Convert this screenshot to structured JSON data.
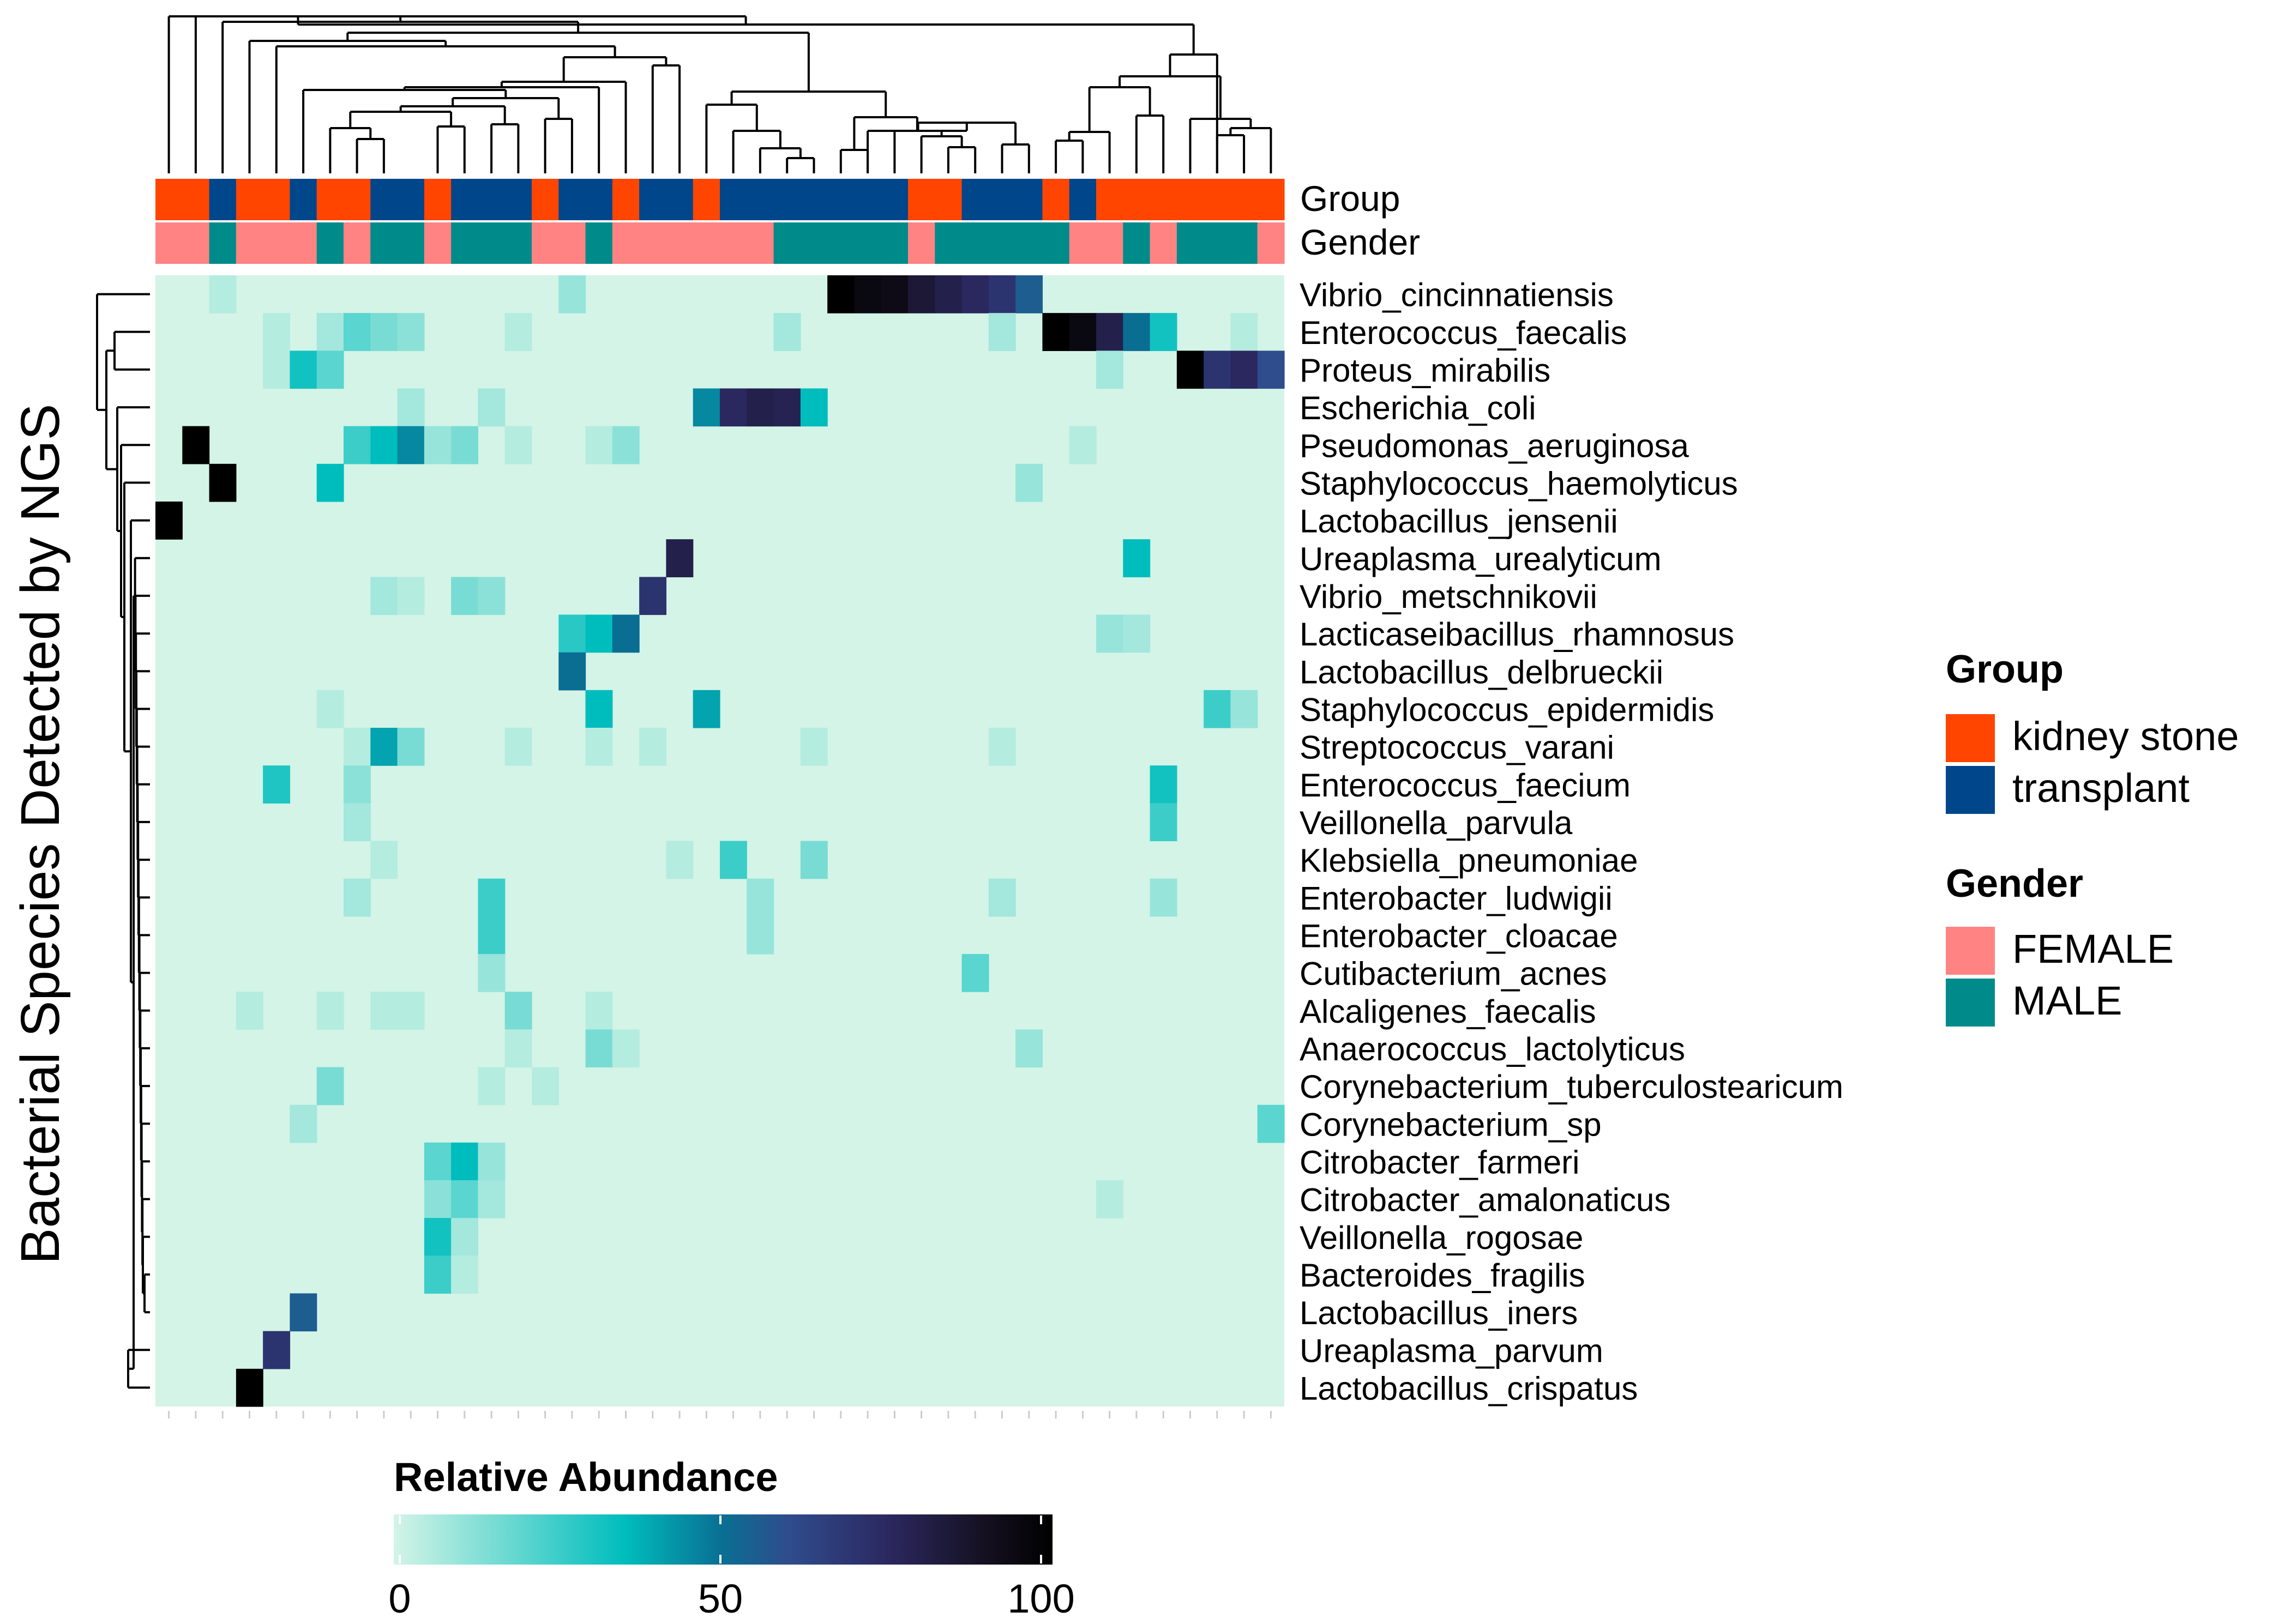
{
  "chart_data": {
    "type": "heatmap",
    "ylabel": "Bacterial Species Detected by NGS",
    "rows": [
      "Vibrio_cincinnatiensis",
      "Enterococcus_faecalis",
      "Proteus_mirabilis",
      "Escherichia_coli",
      "Pseudomonas_aeruginosa",
      "Staphylococcus_haemolyticus",
      "Lactobacillus_jensenii",
      "Ureaplasma_urealyticum",
      "Vibrio_metschnikovii",
      "Lacticaseibacillus_rhamnosus",
      "Lactobacillus_delbrueckii",
      "Staphylococcus_epidermidis",
      "Streptococcus_varani",
      "Enterococcus_faecium",
      "Veillonella_parvula",
      "Klebsiella_pneumoniae",
      "Enterobacter_ludwigii",
      "Enterobacter_cloacae",
      "Cutibacterium_acnes",
      "Alcaligenes_faecalis",
      "Anaerococcus_lactolyticus",
      "Corynebacterium_tuberculostearicum",
      "Corynebacterium_sp",
      "Citrobacter_farmeri",
      "Citrobacter_amalonaticus",
      "Veillonella_rogosae",
      "Bacteroides_fragilis",
      "Lactobacillus_iners",
      "Ureaplasma_parvum",
      "Lactobacillus_crispatus"
    ],
    "n_samples": 42,
    "values_note": "Relative abundance (0-100) per species row, listed as [sample index, value]; all unlisted cells are 0.",
    "nonzero_values": [
      [
        [
          2,
          5
        ],
        [
          15,
          10
        ],
        [
          25,
          100
        ],
        [
          26,
          95
        ],
        [
          27,
          93
        ],
        [
          28,
          85
        ],
        [
          29,
          80
        ],
        [
          30,
          75
        ],
        [
          31,
          70
        ],
        [
          32,
          55
        ]
      ],
      [
        [
          4,
          5
        ],
        [
          6,
          8
        ],
        [
          7,
          20
        ],
        [
          8,
          15
        ],
        [
          9,
          12
        ],
        [
          13,
          5
        ],
        [
          23,
          8
        ],
        [
          31,
          8
        ],
        [
          33,
          100
        ],
        [
          34,
          95
        ],
        [
          35,
          80
        ],
        [
          36,
          50
        ],
        [
          37,
          32
        ],
        [
          40,
          5
        ]
      ],
      [
        [
          4,
          5
        ],
        [
          5,
          32
        ],
        [
          6,
          20
        ],
        [
          35,
          8
        ],
        [
          38,
          100
        ],
        [
          39,
          70
        ],
        [
          40,
          75
        ],
        [
          41,
          60
        ]
      ],
      [
        [
          9,
          8
        ],
        [
          12,
          8
        ],
        [
          20,
          45
        ],
        [
          21,
          75
        ],
        [
          22,
          80
        ],
        [
          23,
          78
        ],
        [
          24,
          35
        ]
      ],
      [
        [
          1,
          100
        ],
        [
          7,
          25
        ],
        [
          8,
          35
        ],
        [
          9,
          45
        ],
        [
          10,
          10
        ],
        [
          11,
          15
        ],
        [
          13,
          5
        ],
        [
          16,
          5
        ],
        [
          17,
          12
        ],
        [
          34,
          5
        ]
      ],
      [
        [
          2,
          100
        ],
        [
          6,
          35
        ],
        [
          32,
          10
        ]
      ],
      [
        [
          0,
          100
        ]
      ],
      [
        [
          19,
          80
        ],
        [
          36,
          35
        ]
      ],
      [
        [
          8,
          8
        ],
        [
          9,
          5
        ],
        [
          11,
          15
        ],
        [
          12,
          12
        ],
        [
          18,
          70
        ]
      ],
      [
        [
          15,
          28
        ],
        [
          16,
          35
        ],
        [
          17,
          50
        ],
        [
          35,
          10
        ],
        [
          36,
          8
        ]
      ],
      [
        [
          15,
          50
        ]
      ],
      [
        [
          6,
          5
        ],
        [
          16,
          35
        ],
        [
          20,
          40
        ],
        [
          39,
          25
        ],
        [
          40,
          10
        ]
      ],
      [
        [
          7,
          5
        ],
        [
          8,
          40
        ],
        [
          9,
          15
        ],
        [
          13,
          5
        ],
        [
          16,
          5
        ],
        [
          18,
          5
        ],
        [
          24,
          5
        ],
        [
          31,
          5
        ]
      ],
      [
        [
          4,
          30
        ],
        [
          7,
          12
        ],
        [
          37,
          32
        ]
      ],
      [
        [
          7,
          8
        ],
        [
          37,
          25
        ]
      ],
      [
        [
          8,
          5
        ],
        [
          19,
          5
        ],
        [
          21,
          25
        ],
        [
          24,
          15
        ]
      ],
      [
        [
          7,
          8
        ],
        [
          12,
          25
        ],
        [
          22,
          10
        ],
        [
          31,
          8
        ],
        [
          37,
          10
        ]
      ],
      [
        [
          12,
          25
        ],
        [
          22,
          10
        ]
      ],
      [
        [
          12,
          10
        ],
        [
          30,
          20
        ]
      ],
      [
        [
          3,
          5
        ],
        [
          6,
          5
        ],
        [
          8,
          5
        ],
        [
          9,
          5
        ],
        [
          13,
          15
        ],
        [
          16,
          5
        ]
      ],
      [
        [
          13,
          5
        ],
        [
          16,
          15
        ],
        [
          17,
          5
        ],
        [
          32,
          10
        ]
      ],
      [
        [
          6,
          15
        ],
        [
          12,
          5
        ],
        [
          14,
          5
        ]
      ],
      [
        [
          5,
          8
        ],
        [
          41,
          20
        ]
      ],
      [
        [
          10,
          20
        ],
        [
          11,
          35
        ],
        [
          12,
          10
        ]
      ],
      [
        [
          10,
          12
        ],
        [
          11,
          20
        ],
        [
          12,
          8
        ],
        [
          35,
          5
        ]
      ],
      [
        [
          10,
          32
        ],
        [
          11,
          8
        ]
      ],
      [
        [
          10,
          25
        ],
        [
          11,
          5
        ]
      ],
      [
        [
          5,
          55
        ]
      ],
      [
        [
          4,
          70
        ]
      ],
      [
        [
          3,
          100
        ]
      ]
    ],
    "annotations": {
      "group": {
        "label": "Group",
        "runs": [
          {
            "value": "kidney stone",
            "count": 2
          },
          {
            "value": "transplant",
            "count": 1
          },
          {
            "value": "kidney stone",
            "count": 2
          },
          {
            "value": "transplant",
            "count": 1
          },
          {
            "value": "kidney stone",
            "count": 2
          },
          {
            "value": "transplant",
            "count": 2
          },
          {
            "value": "kidney stone",
            "count": 1
          },
          {
            "value": "transplant",
            "count": 3
          },
          {
            "value": "kidney stone",
            "count": 1
          },
          {
            "value": "transplant",
            "count": 2
          },
          {
            "value": "kidney stone",
            "count": 1
          },
          {
            "value": "transplant",
            "count": 2
          },
          {
            "value": "kidney stone",
            "count": 1
          },
          {
            "value": "transplant",
            "count": 7
          },
          {
            "value": "kidney stone",
            "count": 2
          },
          {
            "value": "transplant",
            "count": 3
          },
          {
            "value": "kidney stone",
            "count": 1
          },
          {
            "value": "transplant",
            "count": 1
          },
          {
            "value": "kidney stone",
            "count": 7
          }
        ]
      },
      "gender": {
        "label": "Gender",
        "runs": [
          {
            "value": "FEMALE",
            "count": 2
          },
          {
            "value": "MALE",
            "count": 1
          },
          {
            "value": "FEMALE",
            "count": 3
          },
          {
            "value": "MALE",
            "count": 1
          },
          {
            "value": "FEMALE",
            "count": 1
          },
          {
            "value": "MALE",
            "count": 2
          },
          {
            "value": "FEMALE",
            "count": 1
          },
          {
            "value": "MALE",
            "count": 3
          },
          {
            "value": "FEMALE",
            "count": 2
          },
          {
            "value": "MALE",
            "count": 1
          },
          {
            "value": "FEMALE",
            "count": 6
          },
          {
            "value": "MALE",
            "count": 5
          },
          {
            "value": "FEMALE",
            "count": 1
          },
          {
            "value": "MALE",
            "count": 5
          },
          {
            "value": "FEMALE",
            "count": 2
          },
          {
            "value": "MALE",
            "count": 1
          },
          {
            "value": "FEMALE",
            "count": 1
          },
          {
            "value": "MALE",
            "count": 3
          },
          {
            "value": "FEMALE",
            "count": 1
          }
        ]
      }
    },
    "legends": {
      "group": {
        "title": "Group",
        "items": [
          {
            "label": "kidney stone",
            "color": "#FF4500"
          },
          {
            "label": "transplant",
            "color": "#00468B"
          }
        ]
      },
      "gender": {
        "title": "Gender",
        "items": [
          {
            "label": "FEMALE",
            "color": "#FF8383"
          },
          {
            "label": "MALE",
            "color": "#008B8B"
          }
        ]
      },
      "colorbar": {
        "title": "Relative Abundance",
        "min": 0,
        "max": 100,
        "ticks": [
          0,
          50,
          100
        ]
      }
    },
    "colorscale": [
      {
        "value": 0,
        "color": "#D3F4E6"
      },
      {
        "value": 35,
        "color": "#00BDBD"
      },
      {
        "value": 50,
        "color": "#0A6E93"
      },
      {
        "value": 60,
        "color": "#2F4C8C"
      },
      {
        "value": 75,
        "color": "#2B2860"
      },
      {
        "value": 90,
        "color": "#141020"
      },
      {
        "value": 100,
        "color": "#000000"
      }
    ]
  }
}
